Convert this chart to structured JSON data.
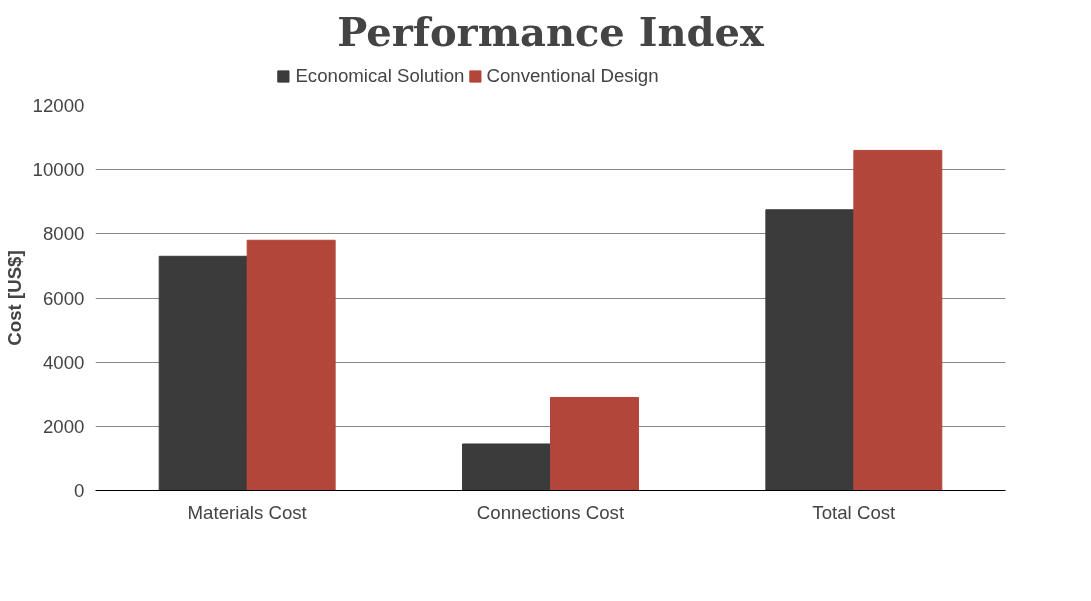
{
  "chart_data": {
    "type": "bar",
    "title": "Performance Index",
    "ylabel": "Cost [US$]",
    "categories": [
      "Materials Cost",
      "Connections Cost",
      "Total Cost"
    ],
    "series": [
      {
        "name": "Economical Solution",
        "color": "#3b3b3b",
        "values": [
          7300,
          1450,
          8750
        ]
      },
      {
        "name": "Conventional Design",
        "color": "#b3463a",
        "values": [
          7800,
          2900,
          10600
        ]
      }
    ],
    "ylim": [
      0,
      12000
    ],
    "yticks": [
      0,
      2000,
      4000,
      6000,
      8000,
      10000,
      12000
    ],
    "grid": "y",
    "legend": "top"
  }
}
